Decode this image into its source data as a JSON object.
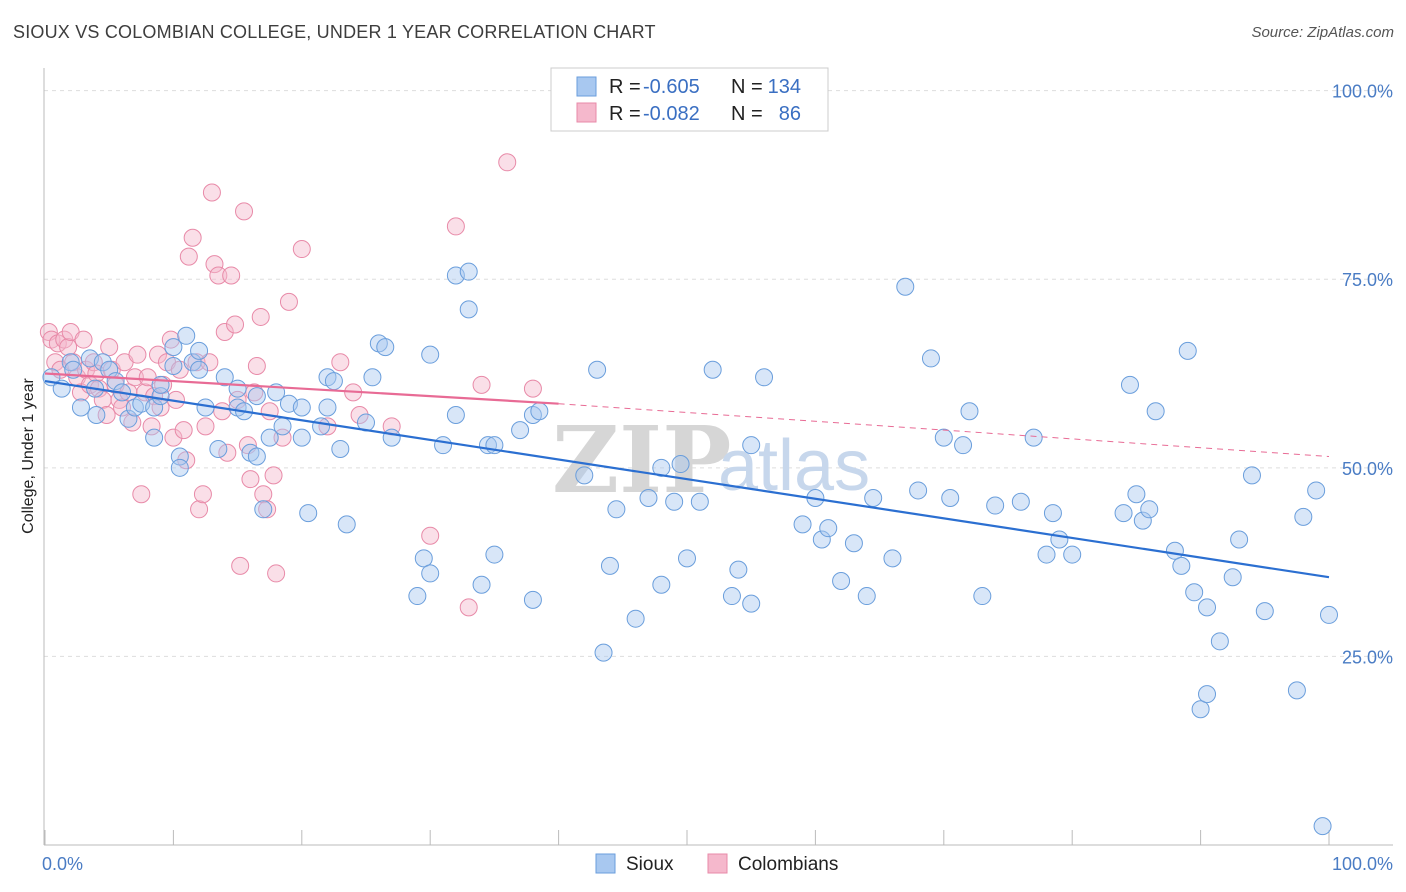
{
  "header": {
    "title": "SIOUX VS COLOMBIAN COLLEGE, UNDER 1 YEAR CORRELATION CHART",
    "source": "Source: ZipAtlas.com"
  },
  "watermark": {
    "zip": "ZIP",
    "atlas": "atlas"
  },
  "colors": {
    "sioux_fill": "#a8c8f0",
    "sioux_stroke": "#6a9edc",
    "sioux_line": "#2b6fd1",
    "colombians_fill": "#f5b8cc",
    "colombians_stroke": "#e88aa8",
    "colombians_line": "#e86b95",
    "grid": "#dddddd",
    "tick_label": "#4a7cc4"
  },
  "legend": {
    "rows": [
      {
        "r_label": "R =",
        "r_value": "-0.605",
        "n_label": "N =",
        "n_value": "134"
      },
      {
        "r_label": "R =",
        "r_value": "-0.082",
        "n_label": "N =",
        "n_value": "86"
      }
    ]
  },
  "bottom_legend": {
    "sioux": "Sioux",
    "colombians": "Colombians"
  },
  "chart_data": {
    "type": "scatter",
    "title": "SIOUX VS COLOMBIAN COLLEGE, UNDER 1 YEAR CORRELATION CHART",
    "xlabel": "",
    "ylabel": "College, Under 1 year",
    "xlim": [
      0,
      100
    ],
    "ylim": [
      0,
      103
    ],
    "x_tick_labels": [
      "0.0%",
      "100.0%"
    ],
    "y_ticks": [
      25,
      50,
      75,
      100
    ],
    "y_tick_labels": [
      "25.0%",
      "50.0%",
      "75.0%",
      "100.0%"
    ],
    "grid": true,
    "legend_position": "top-center",
    "series": [
      {
        "name": "Sioux",
        "r": -0.605,
        "n": 134,
        "trend": {
          "x": [
            0,
            100
          ],
          "y": [
            61.5,
            35.5
          ]
        },
        "points": [
          [
            0.5,
            62
          ],
          [
            1.3,
            60.5
          ],
          [
            2,
            64
          ],
          [
            2.2,
            63
          ],
          [
            2.8,
            58
          ],
          [
            3.5,
            64.5
          ],
          [
            3.9,
            60.5
          ],
          [
            4,
            57
          ],
          [
            4.5,
            64
          ],
          [
            5,
            63
          ],
          [
            5.5,
            61.5
          ],
          [
            6,
            60
          ],
          [
            6.5,
            56.5
          ],
          [
            7,
            58
          ],
          [
            7.5,
            58.5
          ],
          [
            8.5,
            58
          ],
          [
            8.5,
            54
          ],
          [
            9,
            59.5
          ],
          [
            9,
            61
          ],
          [
            10,
            66
          ],
          [
            10,
            63.5
          ],
          [
            10.5,
            51.5
          ],
          [
            10.5,
            50
          ],
          [
            11,
            67.5
          ],
          [
            11.5,
            64
          ],
          [
            12,
            63
          ],
          [
            12.5,
            58
          ],
          [
            12,
            65.5
          ],
          [
            13.5,
            52.5
          ],
          [
            14,
            62
          ],
          [
            15,
            60.5
          ],
          [
            15,
            58
          ],
          [
            15.5,
            57.5
          ],
          [
            16,
            52
          ],
          [
            16.5,
            59.5
          ],
          [
            16.5,
            51.5
          ],
          [
            17,
            44.5
          ],
          [
            17.5,
            54
          ],
          [
            18,
            60
          ],
          [
            18.5,
            55.5
          ],
          [
            19,
            58.5
          ],
          [
            20,
            54
          ],
          [
            20,
            58
          ],
          [
            20.5,
            44
          ],
          [
            21.5,
            55.5
          ],
          [
            22,
            58
          ],
          [
            22,
            62
          ],
          [
            22.5,
            61.5
          ],
          [
            23,
            52.5
          ],
          [
            23.5,
            42.5
          ],
          [
            25,
            56
          ],
          [
            25.5,
            62
          ],
          [
            26,
            66.5
          ],
          [
            26.5,
            66
          ],
          [
            27,
            54
          ],
          [
            29,
            33
          ],
          [
            29.5,
            38
          ],
          [
            30,
            36
          ],
          [
            30,
            65
          ],
          [
            31,
            53
          ],
          [
            32,
            75.5
          ],
          [
            32,
            57
          ],
          [
            33,
            76
          ],
          [
            33,
            71
          ],
          [
            34,
            34.5
          ],
          [
            34.5,
            53
          ],
          [
            35,
            38.5
          ],
          [
            35,
            53
          ],
          [
            37,
            55
          ],
          [
            38,
            57
          ],
          [
            38.5,
            57.5
          ],
          [
            38,
            32.5
          ],
          [
            42,
            49
          ],
          [
            43,
            63
          ],
          [
            43.5,
            25.5
          ],
          [
            44,
            37
          ],
          [
            44.5,
            44.5
          ],
          [
            46,
            30
          ],
          [
            47,
            46
          ],
          [
            48,
            50
          ],
          [
            48,
            34.5
          ],
          [
            49,
            45.5
          ],
          [
            49.5,
            50.5
          ],
          [
            50,
            38
          ],
          [
            51,
            45.5
          ],
          [
            52,
            63
          ],
          [
            53.5,
            33
          ],
          [
            54,
            36.5
          ],
          [
            55,
            32
          ],
          [
            55,
            53
          ],
          [
            56,
            62
          ],
          [
            59,
            42.5
          ],
          [
            60,
            46
          ],
          [
            60.5,
            40.5
          ],
          [
            61,
            42
          ],
          [
            62,
            35
          ],
          [
            63,
            40
          ],
          [
            64,
            33
          ],
          [
            64.5,
            46
          ],
          [
            66,
            38
          ],
          [
            67,
            74
          ],
          [
            68,
            47
          ],
          [
            69,
            64.5
          ],
          [
            70,
            54
          ],
          [
            70.5,
            46
          ],
          [
            71.5,
            53
          ],
          [
            72,
            57.5
          ],
          [
            73,
            33
          ],
          [
            74,
            45
          ],
          [
            76,
            45.5
          ],
          [
            77,
            54
          ],
          [
            78,
            38.5
          ],
          [
            78.5,
            44
          ],
          [
            79,
            40.5
          ],
          [
            80,
            38.5
          ],
          [
            84,
            44
          ],
          [
            84.5,
            61
          ],
          [
            85,
            46.5
          ],
          [
            85.5,
            43
          ],
          [
            86,
            44.5
          ],
          [
            86.5,
            57.5
          ],
          [
            88,
            39
          ],
          [
            88.5,
            37
          ],
          [
            89,
            65.5
          ],
          [
            89.5,
            33.5
          ],
          [
            90,
            18
          ],
          [
            90.5,
            20
          ],
          [
            90.5,
            31.5
          ],
          [
            91.5,
            27
          ],
          [
            92.5,
            35.5
          ],
          [
            93,
            40.5
          ],
          [
            94,
            49
          ],
          [
            95,
            31
          ],
          [
            97.5,
            20.5
          ],
          [
            98,
            43.5
          ],
          [
            99,
            47
          ],
          [
            99.5,
            2.5
          ],
          [
            100,
            30.5
          ]
        ]
      },
      {
        "name": "Colombians",
        "r": -0.082,
        "n": 86,
        "trend": {
          "x": [
            0,
            40
          ],
          "y": [
            62.5,
            58.5
          ]
        },
        "trend_extension": {
          "x": [
            40,
            100
          ],
          "y": [
            58.5,
            51.5
          ]
        },
        "points": [
          [
            0.3,
            68
          ],
          [
            0.5,
            67
          ],
          [
            0.8,
            64
          ],
          [
            1,
            66.5
          ],
          [
            1.2,
            63
          ],
          [
            1.5,
            67
          ],
          [
            1.8,
            66
          ],
          [
            2,
            68
          ],
          [
            2.2,
            64
          ],
          [
            2.5,
            62
          ],
          [
            2.8,
            60
          ],
          [
            3,
            67
          ],
          [
            3.2,
            63
          ],
          [
            3.5,
            61
          ],
          [
            3.8,
            64
          ],
          [
            4,
            62.5
          ],
          [
            4.2,
            60.5
          ],
          [
            4.5,
            59
          ],
          [
            4.8,
            57
          ],
          [
            5,
            66
          ],
          [
            5.2,
            63
          ],
          [
            5.5,
            61
          ],
          [
            5.8,
            59
          ],
          [
            6,
            58
          ],
          [
            6.2,
            64
          ],
          [
            6.5,
            60
          ],
          [
            6.8,
            56
          ],
          [
            7,
            62
          ],
          [
            7.2,
            65
          ],
          [
            7.5,
            46.5
          ],
          [
            7.8,
            60
          ],
          [
            8,
            62
          ],
          [
            8.3,
            55.5
          ],
          [
            8.5,
            59.5
          ],
          [
            8.8,
            65
          ],
          [
            9,
            58
          ],
          [
            9.2,
            61
          ],
          [
            9.5,
            64
          ],
          [
            9.8,
            67
          ],
          [
            10,
            54
          ],
          [
            10.2,
            59
          ],
          [
            10.5,
            63
          ],
          [
            10.8,
            55
          ],
          [
            11,
            51
          ],
          [
            11.2,
            78
          ],
          [
            11.5,
            80.5
          ],
          [
            11.8,
            64
          ],
          [
            12,
            44.5
          ],
          [
            12.3,
            46.5
          ],
          [
            12.5,
            55.5
          ],
          [
            12.8,
            64
          ],
          [
            13,
            86.5
          ],
          [
            13.2,
            77
          ],
          [
            13.5,
            75.5
          ],
          [
            13.8,
            57.5
          ],
          [
            14,
            68
          ],
          [
            14.2,
            52
          ],
          [
            14.5,
            75.5
          ],
          [
            14.8,
            69
          ],
          [
            15,
            59
          ],
          [
            15.2,
            37
          ],
          [
            15.5,
            84
          ],
          [
            15.8,
            53
          ],
          [
            16,
            48.5
          ],
          [
            16.3,
            60
          ],
          [
            16.5,
            63.5
          ],
          [
            16.8,
            70
          ],
          [
            17,
            46.5
          ],
          [
            17.3,
            44.5
          ],
          [
            17.5,
            57.5
          ],
          [
            17.8,
            49
          ],
          [
            18,
            36
          ],
          [
            18.5,
            54
          ],
          [
            19,
            72
          ],
          [
            20,
            79
          ],
          [
            22,
            55.5
          ],
          [
            23,
            64
          ],
          [
            24,
            60
          ],
          [
            24.5,
            57
          ],
          [
            27,
            55.5
          ],
          [
            30,
            41
          ],
          [
            32,
            82
          ],
          [
            33,
            31.5
          ],
          [
            34,
            61
          ],
          [
            36,
            90.5
          ],
          [
            38,
            60.5
          ]
        ]
      }
    ]
  }
}
